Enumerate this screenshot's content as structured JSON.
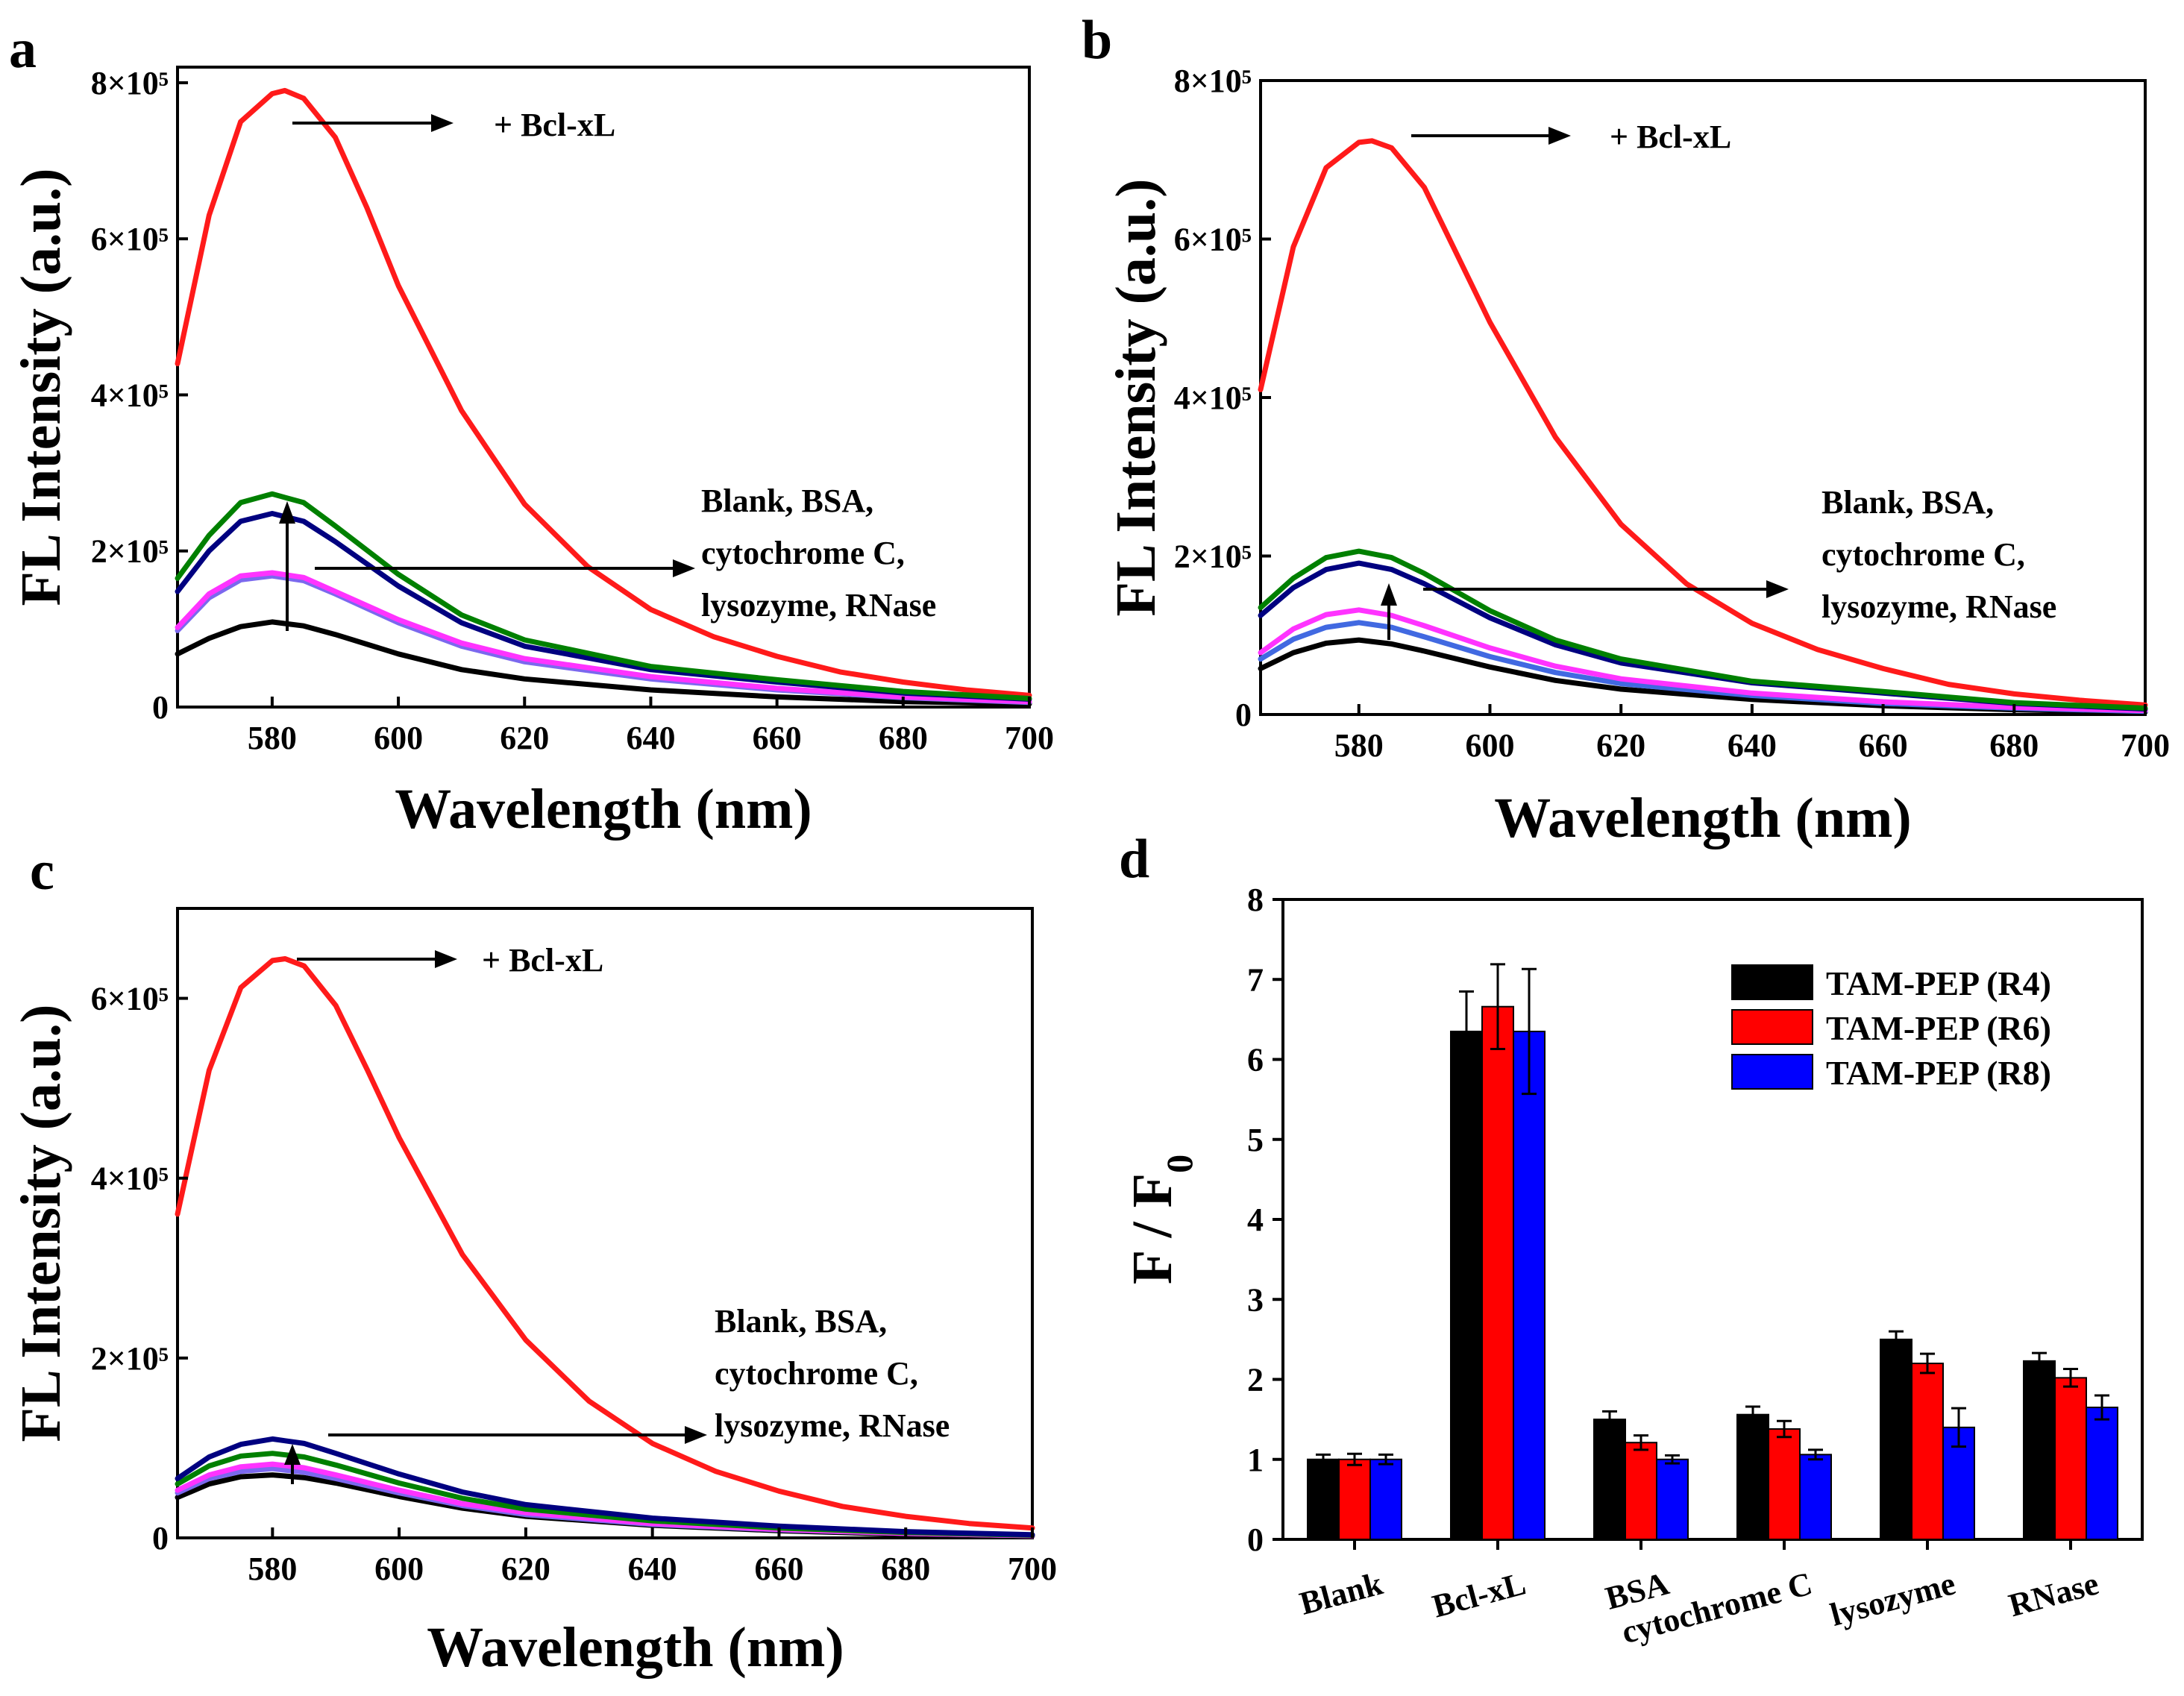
{
  "chart_data": [
    {
      "panel": "a",
      "type": "line",
      "xlabel": "Wavelength (nm)",
      "ylabel": "FL Intensity (a.u.)",
      "xlim": [
        565,
        700
      ],
      "ylim": [
        0,
        820000
      ],
      "xticks": [
        580,
        600,
        620,
        640,
        660,
        680,
        700
      ],
      "yticks": [
        0,
        200000,
        400000,
        600000,
        800000
      ],
      "ytick_labels": [
        "0",
        "2×10⁵",
        "4×10⁵",
        "6×10⁵",
        "8×10⁵"
      ],
      "legend": "none",
      "series": [
        {
          "name": "+ Bcl-xL",
          "color": "#ff1a1a",
          "x": [
            565,
            570,
            575,
            580,
            582,
            585,
            590,
            595,
            600,
            610,
            620,
            630,
            640,
            650,
            660,
            670,
            680,
            690,
            700
          ],
          "y": [
            440000,
            630000,
            750000,
            786000,
            790000,
            780000,
            730000,
            640000,
            540000,
            380000,
            260000,
            180000,
            125000,
            90000,
            65000,
            45000,
            32000,
            22000,
            15000
          ]
        },
        {
          "name": "Blank",
          "color": "#000000",
          "x": [
            565,
            570,
            575,
            580,
            585,
            590,
            600,
            610,
            620,
            640,
            660,
            680,
            700
          ],
          "y": [
            68000,
            88000,
            103000,
            109000,
            104000,
            93000,
            68000,
            48000,
            36000,
            22000,
            13000,
            7000,
            4000
          ]
        },
        {
          "name": "BSA",
          "color": "#7b68ee",
          "x": [
            565,
            570,
            575,
            580,
            585,
            590,
            600,
            610,
            620,
            640,
            660,
            680,
            700
          ],
          "y": [
            98000,
            140000,
            163000,
            168000,
            162000,
            145000,
            108000,
            78000,
            58000,
            36000,
            22000,
            12000,
            6000
          ]
        },
        {
          "name": "cytochrome C",
          "color": "#ff33ff",
          "x": [
            565,
            570,
            575,
            580,
            585,
            590,
            600,
            610,
            620,
            640,
            660,
            680,
            700
          ],
          "y": [
            102000,
            145000,
            168000,
            172000,
            166000,
            148000,
            112000,
            82000,
            62000,
            39000,
            24000,
            13000,
            7000
          ]
        },
        {
          "name": "lysozyme",
          "color": "#000080",
          "x": [
            565,
            570,
            575,
            580,
            585,
            590,
            600,
            610,
            620,
            640,
            660,
            680,
            700
          ],
          "y": [
            148000,
            200000,
            238000,
            248000,
            238000,
            212000,
            155000,
            108000,
            78000,
            48000,
            32000,
            18000,
            10000
          ]
        },
        {
          "name": "RNase",
          "color": "#008000",
          "x": [
            565,
            570,
            575,
            580,
            585,
            590,
            600,
            610,
            620,
            640,
            660,
            680,
            700
          ],
          "y": [
            165000,
            220000,
            262000,
            273000,
            262000,
            232000,
            170000,
            118000,
            86000,
            52000,
            35000,
            20000,
            11000
          ]
        }
      ],
      "annotations": {
        "top": "+ Bcl-xL",
        "bottom": [
          "Blank, BSA,",
          "cytochrome C,",
          "lysozyme, RNase"
        ]
      }
    },
    {
      "panel": "b",
      "type": "line",
      "xlabel": "Wavelength (nm)",
      "ylabel": "FL Intensity (a.u.)",
      "xlim": [
        565,
        700
      ],
      "ylim": [
        0,
        800000
      ],
      "xticks": [
        580,
        600,
        620,
        640,
        660,
        680,
        700
      ],
      "yticks": [
        0,
        200000,
        400000,
        600000,
        800000
      ],
      "ytick_labels": [
        "0",
        "2×10⁵",
        "4×10⁵",
        "6×10⁵",
        "8×10⁵"
      ],
      "legend": "none",
      "series": [
        {
          "name": "+ Bcl-xL",
          "color": "#ff1a1a",
          "x": [
            565,
            570,
            575,
            580,
            582,
            585,
            590,
            595,
            600,
            610,
            620,
            630,
            640,
            650,
            660,
            670,
            680,
            690,
            700
          ],
          "y": [
            410000,
            590000,
            690000,
            722000,
            724000,
            715000,
            665000,
            580000,
            495000,
            350000,
            240000,
            165000,
            115000,
            82000,
            58000,
            38000,
            26000,
            18000,
            12000
          ]
        },
        {
          "name": "Blank",
          "color": "#000000",
          "x": [
            565,
            570,
            575,
            580,
            585,
            590,
            600,
            610,
            620,
            640,
            660,
            680,
            700
          ],
          "y": [
            58000,
            78000,
            90000,
            94000,
            89000,
            80000,
            60000,
            43000,
            32000,
            19000,
            11000,
            6000,
            3000
          ]
        },
        {
          "name": "BSA",
          "color": "#4169e1",
          "x": [
            565,
            570,
            575,
            580,
            585,
            590,
            600,
            610,
            620,
            640,
            660,
            680,
            700
          ],
          "y": [
            70000,
            95000,
            110000,
            116000,
            110000,
            98000,
            73000,
            53000,
            39000,
            24000,
            14000,
            8000,
            4000
          ]
        },
        {
          "name": "cytochrome C",
          "color": "#ff33ff",
          "x": [
            565,
            570,
            575,
            580,
            585,
            590,
            600,
            610,
            620,
            640,
            660,
            680,
            700
          ],
          "y": [
            78000,
            108000,
            126000,
            132000,
            125000,
            112000,
            84000,
            61000,
            45000,
            27000,
            16000,
            9000,
            5000
          ]
        },
        {
          "name": "lysozyme",
          "color": "#000080",
          "x": [
            565,
            570,
            575,
            580,
            585,
            590,
            600,
            610,
            620,
            640,
            660,
            680,
            700
          ],
          "y": [
            125000,
            160000,
            183000,
            191000,
            183000,
            165000,
            122000,
            88000,
            65000,
            40000,
            27000,
            14000,
            7000
          ]
        },
        {
          "name": "RNase",
          "color": "#008000",
          "x": [
            565,
            570,
            575,
            580,
            585,
            590,
            600,
            610,
            620,
            640,
            660,
            680,
            700
          ],
          "y": [
            135000,
            172000,
            198000,
            206000,
            198000,
            178000,
            131000,
            94000,
            70000,
            42000,
            29000,
            15000,
            8000
          ]
        }
      ],
      "annotations": {
        "top": "+ Bcl-xL",
        "bottom": [
          "Blank, BSA,",
          "cytochrome C,",
          "lysozyme, RNase"
        ]
      }
    },
    {
      "panel": "c",
      "type": "line",
      "xlabel": "Wavelength (nm)",
      "ylabel": "FL Intensity (a.u.)",
      "xlim": [
        565,
        700
      ],
      "ylim": [
        0,
        700000
      ],
      "xticks": [
        580,
        600,
        620,
        640,
        660,
        680,
        700
      ],
      "yticks": [
        0,
        200000,
        400000,
        600000
      ],
      "ytick_labels": [
        "0",
        "2×10⁵",
        "4×10⁵",
        "6×10⁵"
      ],
      "legend": "none",
      "series": [
        {
          "name": "+ Bcl-xL",
          "color": "#ff1a1a",
          "x": [
            565,
            570,
            575,
            580,
            582,
            585,
            590,
            595,
            600,
            610,
            620,
            630,
            640,
            650,
            660,
            670,
            680,
            690,
            700
          ],
          "y": [
            360000,
            520000,
            612000,
            642000,
            644000,
            636000,
            592000,
            520000,
            445000,
            315000,
            220000,
            152000,
            105000,
            74000,
            52000,
            35000,
            24000,
            16000,
            11000
          ]
        },
        {
          "name": "Blank",
          "color": "#000000",
          "x": [
            565,
            570,
            575,
            580,
            585,
            590,
            600,
            610,
            620,
            640,
            660,
            680,
            700
          ],
          "y": [
            45000,
            60000,
            68000,
            70000,
            67000,
            61000,
            46000,
            33000,
            24000,
            14000,
            8000,
            4000,
            2000
          ]
        },
        {
          "name": "BSA",
          "color": "#7b68ee",
          "x": [
            565,
            570,
            575,
            580,
            585,
            590,
            600,
            610,
            620,
            640,
            660,
            680,
            700
          ],
          "y": [
            50000,
            66000,
            74000,
            77000,
            73000,
            66000,
            50000,
            36000,
            26000,
            15000,
            9000,
            5000,
            2500
          ]
        },
        {
          "name": "cytochrome C",
          "color": "#ff33ff",
          "x": [
            565,
            570,
            575,
            580,
            585,
            590,
            600,
            610,
            620,
            640,
            660,
            680,
            700
          ],
          "y": [
            53000,
            70000,
            79000,
            82000,
            78000,
            70000,
            53000,
            38000,
            28000,
            16000,
            9500,
            5000,
            2500
          ]
        },
        {
          "name": "RNase",
          "color": "#008000",
          "x": [
            565,
            570,
            575,
            580,
            585,
            590,
            600,
            610,
            620,
            640,
            660,
            680,
            700
          ],
          "y": [
            60000,
            80000,
            91000,
            94000,
            90000,
            81000,
            61000,
            44000,
            32000,
            19000,
            11000,
            6000,
            3000
          ]
        },
        {
          "name": "lysozyme",
          "color": "#000080",
          "x": [
            565,
            570,
            575,
            580,
            585,
            590,
            600,
            610,
            620,
            640,
            660,
            680,
            700
          ],
          "y": [
            66000,
            90000,
            104000,
            110000,
            105000,
            94000,
            71000,
            51000,
            37000,
            22000,
            13000,
            7000,
            3500
          ]
        }
      ],
      "annotations": {
        "top": "+ Bcl-xL",
        "bottom": [
          "Blank, BSA,",
          "cytochrome C,",
          "lysozyme, RNase"
        ]
      }
    },
    {
      "panel": "d",
      "type": "bar",
      "xlabel": "",
      "ylabel": "F / F",
      "ylabel_subscript": "0",
      "ylim": [
        0,
        8
      ],
      "yticks": [
        0,
        1,
        2,
        3,
        4,
        5,
        6,
        7,
        8
      ],
      "categories": [
        "Blank",
        "Bcl-xL",
        "BSA",
        "cytochrome C",
        "lysozyme",
        "RNase"
      ],
      "legend": "top-right",
      "series": [
        {
          "name": "TAM-PEP (R4)",
          "color": "#000000",
          "values": [
            1.0,
            6.35,
            1.5,
            1.56,
            2.5,
            2.23
          ],
          "errors": [
            0.06,
            0.5,
            0.1,
            0.1,
            0.1,
            0.1
          ]
        },
        {
          "name": "TAM-PEP (R6)",
          "color": "#ff0000",
          "values": [
            1.0,
            6.66,
            1.21,
            1.38,
            2.2,
            2.02
          ],
          "errors": [
            0.07,
            0.53,
            0.09,
            0.1,
            0.12,
            0.11
          ]
        },
        {
          "name": "TAM-PEP (R8)",
          "color": "#0000ff",
          "values": [
            1.0,
            6.35,
            1.0,
            1.06,
            1.4,
            1.65
          ],
          "errors": [
            0.06,
            0.78,
            0.05,
            0.06,
            0.24,
            0.15
          ]
        }
      ]
    }
  ]
}
